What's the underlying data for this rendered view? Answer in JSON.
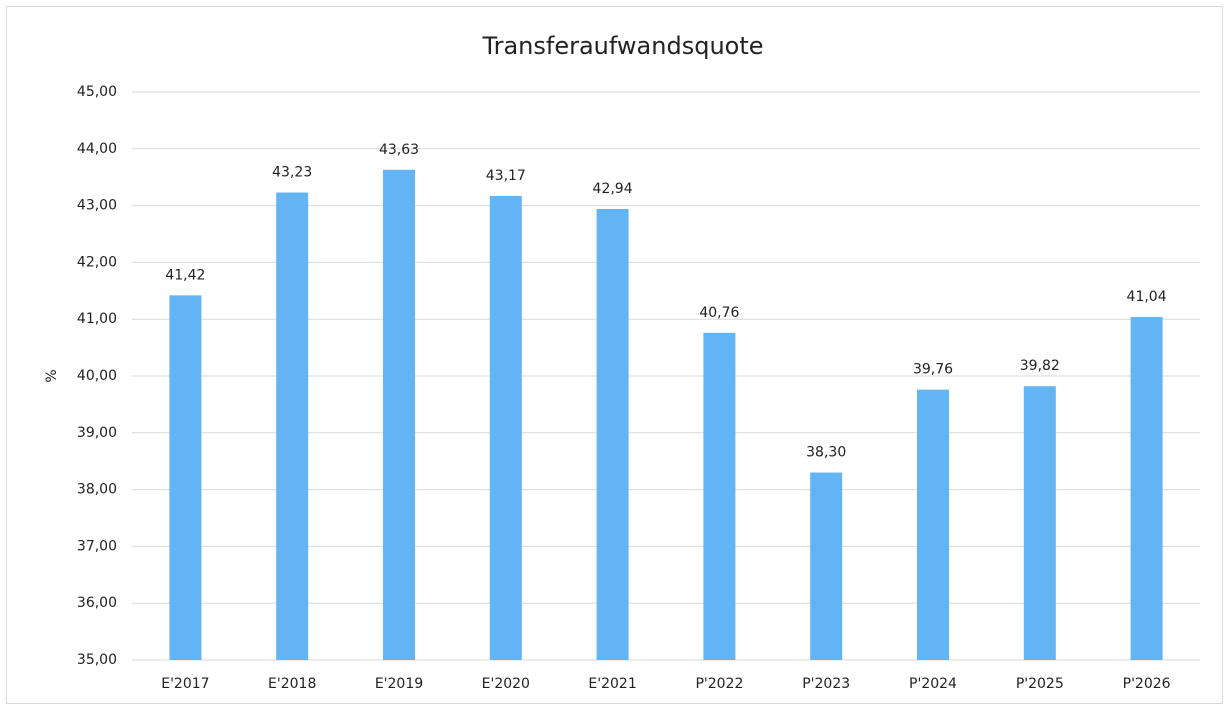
{
  "chart_data": {
    "type": "bar",
    "title": "Transferaufwandsquote",
    "y_label": "%",
    "categories": [
      "E'2017",
      "E'2018",
      "E'2019",
      "E'2020",
      "E'2021",
      "P'2022",
      "P'2023",
      "P'2024",
      "P'2025",
      "P'2026"
    ],
    "values": [
      41.42,
      43.23,
      43.63,
      43.17,
      42.94,
      40.76,
      38.3,
      39.76,
      39.82,
      41.04
    ],
    "value_labels": [
      "41,42",
      "43,23",
      "43,63",
      "43,17",
      "42,94",
      "40,76",
      "38,30",
      "39,76",
      "39,82",
      "41,04"
    ],
    "color": "#63b4f5",
    "ylim": [
      35,
      45
    ],
    "yticks": [
      {
        "value": 35,
        "label": "35,00"
      },
      {
        "value": 36,
        "label": "36,00"
      },
      {
        "value": 37,
        "label": "37,00"
      },
      {
        "value": 38,
        "label": "38,00"
      },
      {
        "value": 39,
        "label": "39,00"
      },
      {
        "value": 40,
        "label": "40,00"
      },
      {
        "value": 41,
        "label": "41,00"
      },
      {
        "value": 42,
        "label": "42,00"
      },
      {
        "value": 43,
        "label": "43,00"
      },
      {
        "value": 44,
        "label": "44,00"
      },
      {
        "value": 45,
        "label": "45,00"
      }
    ],
    "grid": true
  }
}
